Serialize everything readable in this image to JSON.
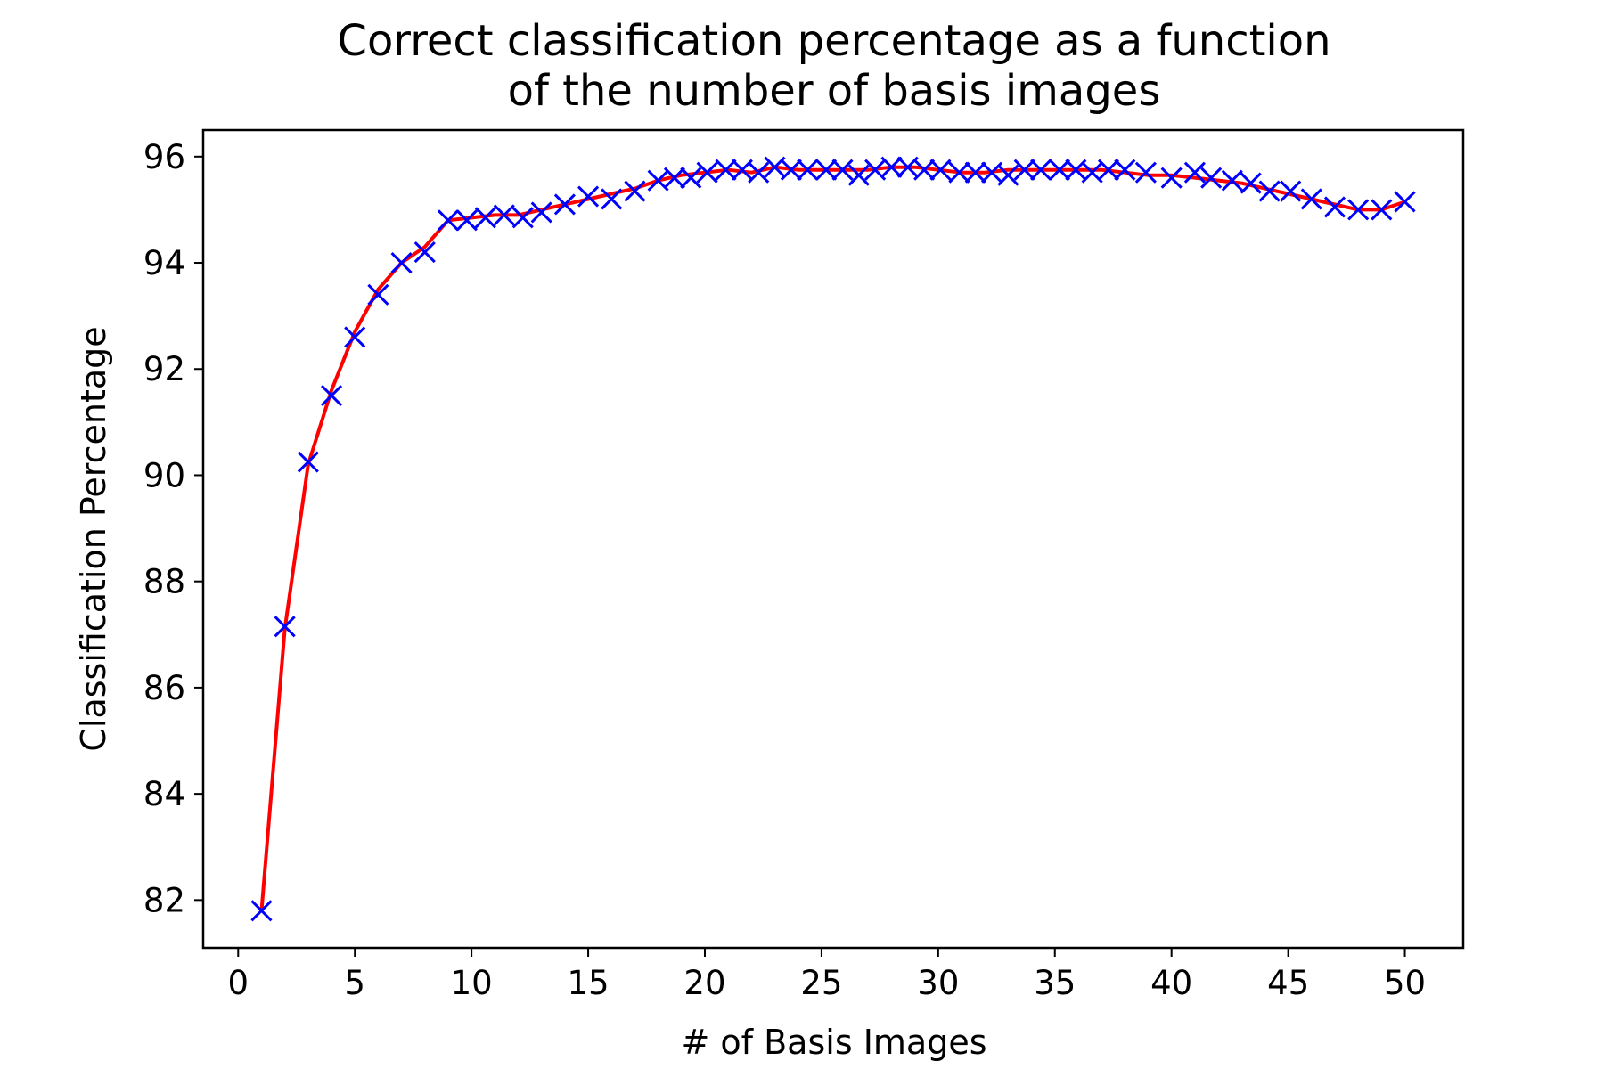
{
  "chart_data": {
    "type": "line",
    "title_lines": [
      "Correct classification percentage as a function",
      "of the number of basis images"
    ],
    "xlabel": "# of Basis Images",
    "ylabel": "Classification Percentage",
    "xlim": [
      -1.5,
      52.5
    ],
    "ylim": [
      81.1,
      96.5
    ],
    "x_ticks": [
      0,
      5,
      10,
      15,
      20,
      25,
      30,
      35,
      40,
      45,
      50
    ],
    "x_tick_labels": [
      "0",
      "5",
      "10",
      "15",
      "20",
      "25",
      "30",
      "35",
      "40",
      "45",
      "50"
    ],
    "y_ticks": [
      82,
      84,
      86,
      88,
      90,
      92,
      94,
      96
    ],
    "y_tick_labels": [
      "82",
      "84",
      "86",
      "88",
      "90",
      "92",
      "94",
      "96"
    ],
    "grid": false,
    "legend": "none",
    "colors": {
      "line": "#ff0000",
      "marker": "#0000ff"
    },
    "line_series": {
      "x": [
        1,
        2,
        3,
        4,
        5,
        6,
        7,
        8,
        9,
        10,
        11,
        12,
        13,
        14,
        15,
        16,
        17,
        18,
        19,
        20,
        21,
        22,
        23,
        24,
        25,
        26,
        27,
        28,
        29,
        30,
        31,
        32,
        33,
        34,
        35,
        36,
        37,
        38,
        39,
        40,
        41,
        42,
        43,
        44,
        45,
        46,
        47,
        48,
        49,
        50
      ],
      "y": [
        81.8,
        87.1,
        90.2,
        91.6,
        92.7,
        93.5,
        94.0,
        94.3,
        94.8,
        94.85,
        94.9,
        94.9,
        95.0,
        95.1,
        95.2,
        95.3,
        95.4,
        95.55,
        95.65,
        95.7,
        95.75,
        95.7,
        95.8,
        95.75,
        95.75,
        95.75,
        95.75,
        95.8,
        95.8,
        95.75,
        95.7,
        95.7,
        95.75,
        95.75,
        95.75,
        95.75,
        95.75,
        95.7,
        95.65,
        95.65,
        95.6,
        95.55,
        95.5,
        95.4,
        95.3,
        95.2,
        95.1,
        95.0,
        95.0,
        95.15
      ]
    },
    "marker_series": {
      "marker": "x",
      "x": [
        1,
        2,
        3,
        4,
        5,
        6,
        7,
        8,
        9,
        9.8,
        10.6,
        11.4,
        12.2,
        13,
        14,
        15,
        16,
        17,
        18,
        18.7,
        19.4,
        20.1,
        20.9,
        21.6,
        22.3,
        23,
        23.7,
        24.4,
        25.2,
        25.9,
        26.6,
        27.3,
        28,
        28.7,
        29.4,
        30.1,
        30.9,
        31.6,
        32.3,
        33,
        33.7,
        34.4,
        35.2,
        35.9,
        36.6,
        37.3,
        38,
        38.9,
        40,
        41,
        41.7,
        42.6,
        43.4,
        44.2,
        45.1,
        46,
        47,
        48,
        49,
        50
      ],
      "y": [
        81.8,
        87.15,
        90.25,
        91.5,
        92.6,
        93.4,
        94.0,
        94.2,
        94.8,
        94.8,
        94.85,
        94.9,
        94.85,
        94.95,
        95.1,
        95.25,
        95.2,
        95.35,
        95.55,
        95.6,
        95.6,
        95.7,
        95.75,
        95.75,
        95.7,
        95.8,
        95.75,
        95.75,
        95.75,
        95.75,
        95.65,
        95.75,
        95.8,
        95.8,
        95.75,
        95.75,
        95.7,
        95.7,
        95.7,
        95.65,
        95.75,
        95.75,
        95.75,
        95.75,
        95.7,
        95.75,
        95.75,
        95.7,
        95.6,
        95.7,
        95.6,
        95.55,
        95.5,
        95.35,
        95.35,
        95.2,
        95.05,
        95.0,
        95.0,
        95.15
      ]
    }
  }
}
